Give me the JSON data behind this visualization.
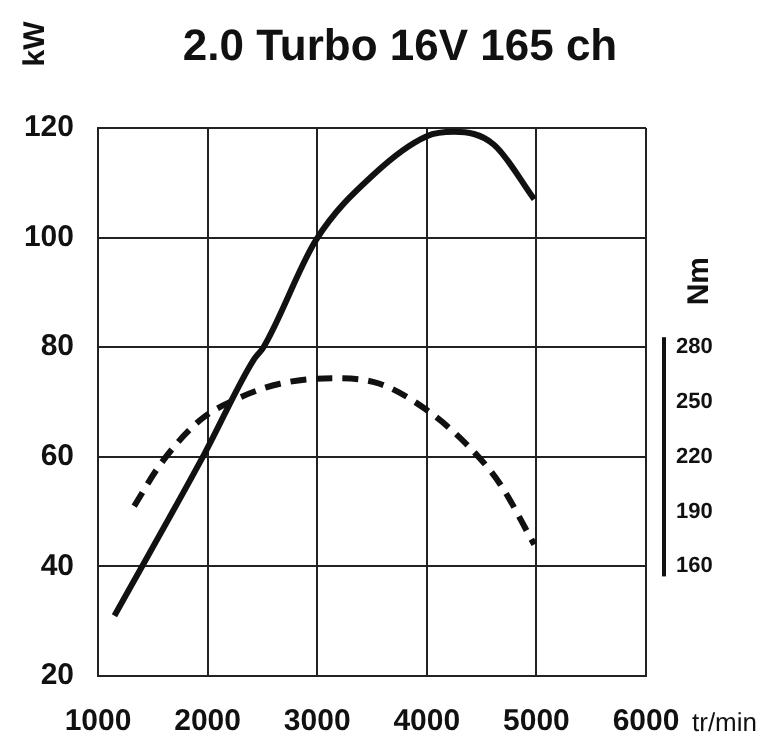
{
  "chart_data": {
    "type": "line",
    "title": "2.0 Turbo 16V 165 ch",
    "ylabel": "kW",
    "y2label": "Nm",
    "xlabel": "tr/min",
    "xlim": [
      1000,
      6000
    ],
    "xticks": [
      1000,
      2000,
      3000,
      4000,
      5000,
      6000
    ],
    "ylim": [
      20,
      120
    ],
    "yticks": [
      20,
      40,
      60,
      80,
      100,
      120
    ],
    "y2lim": [
      100,
      400
    ],
    "y2ticks": [
      160,
      190,
      220,
      250,
      280
    ],
    "grid": true,
    "legend": false,
    "marker": "none",
    "series": [
      {
        "color": "#111111",
        "line_style": "solid",
        "x": [
          1150,
          1970,
          2420,
          2510,
          2990,
          3520,
          4000,
          4250,
          4610,
          4980
        ],
        "values": [
          31,
          60.5,
          77.7,
          80,
          99.6,
          111.6,
          118.5,
          119.3,
          117,
          107
        ]
      },
      {
        "color": "#111111",
        "line_style": "dashed",
        "axis": "y2",
        "x": [
          1330,
          1570,
          1930,
          2240,
          2660,
          3150,
          3570,
          3990,
          4360,
          4670,
          4980
        ],
        "values": [
          193,
          216,
          240,
          251,
          260,
          263,
          260,
          246,
          227,
          205,
          172
        ]
      }
    ]
  }
}
